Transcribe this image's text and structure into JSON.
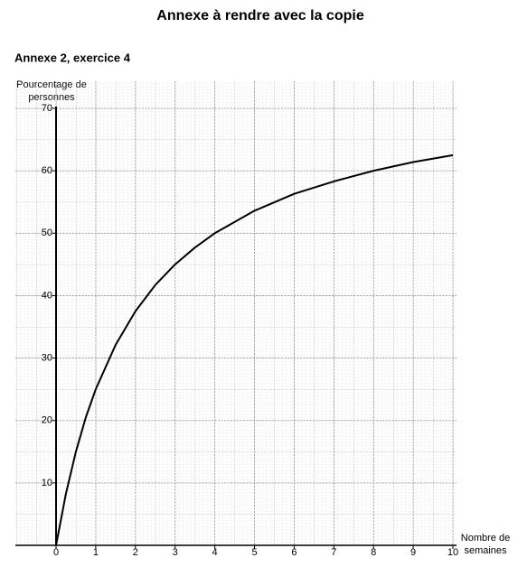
{
  "chart_data": {
    "type": "line",
    "title": "Annexe à rendre avec la copie",
    "subtitle": "Annexe 2, exercice 4",
    "y_label": [
      "Pourcentage de",
      "personnes"
    ],
    "x_label": [
      "Nombre de",
      "semaines"
    ],
    "x": [
      0,
      0.25,
      0.5,
      0.75,
      1,
      1.5,
      2,
      2.5,
      3,
      3.5,
      4,
      5,
      6,
      7,
      8,
      9,
      10
    ],
    "series": [
      {
        "color": "#000000",
        "values": [
          0,
          8.3,
          15,
          20.5,
          25,
          32.1,
          37.5,
          41.7,
          45,
          47.7,
          50,
          53.6,
          56.3,
          58.3,
          60,
          61.4,
          62.5
        ]
      }
    ],
    "xlim": [
      0,
      10
    ],
    "ylim": [
      0,
      70
    ],
    "xticks": [
      0,
      1,
      2,
      3,
      4,
      5,
      6,
      7,
      8,
      9,
      10
    ],
    "yticks": [
      10,
      20,
      30,
      40,
      50,
      60,
      70
    ],
    "grid": true
  }
}
